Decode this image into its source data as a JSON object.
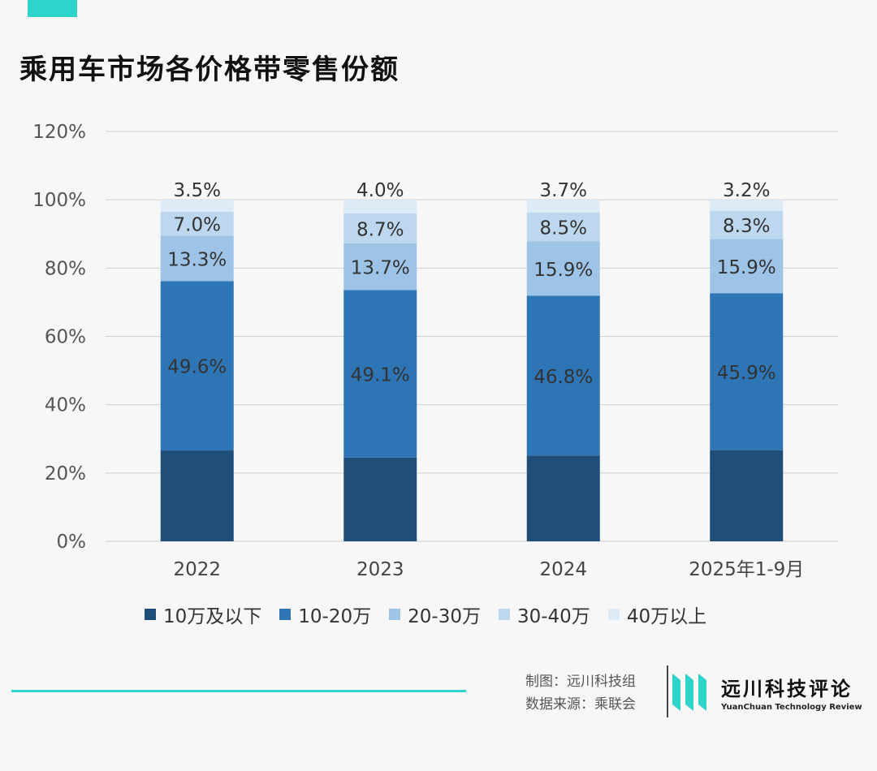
{
  "title": "乘用车市场各价格带零售份额",
  "chart_data": {
    "type": "bar",
    "stacked": true,
    "categories": [
      "2022",
      "2023",
      "2024",
      "2025年1-9月"
    ],
    "series": [
      {
        "name": "10万及以下",
        "color": "#1f4e79",
        "values": [
          26.6,
          24.5,
          25.1,
          26.7
        ]
      },
      {
        "name": "10-20万",
        "color": "#2e75b6",
        "values": [
          49.6,
          49.1,
          46.8,
          45.9
        ]
      },
      {
        "name": "20-30万",
        "color": "#9dc3e6",
        "values": [
          13.3,
          13.7,
          15.9,
          15.9
        ]
      },
      {
        "name": "30-40万",
        "color": "#bdd7ee",
        "values": [
          7.0,
          8.7,
          8.5,
          8.3
        ]
      },
      {
        "name": "40万以上",
        "color": "#ddebf7",
        "values": [
          3.5,
          4.0,
          3.7,
          3.2
        ]
      }
    ],
    "data_labels": [
      {
        "series": "10-20万",
        "labels": [
          "49.6%",
          "49.1%",
          "46.8%",
          "45.9%"
        ]
      },
      {
        "series": "20-30万",
        "labels": [
          "13.3%",
          "13.7%",
          "15.9%",
          "15.9%"
        ]
      },
      {
        "series": "30-40万",
        "labels": [
          "7.0%",
          "8.7%",
          "8.5%",
          "8.3%"
        ]
      },
      {
        "series": "40万以上",
        "labels": [
          "3.5%",
          "4.0%",
          "3.7%",
          "3.2%"
        ]
      }
    ],
    "yticks": [
      "0%",
      "20%",
      "40%",
      "60%",
      "80%",
      "100%",
      "120%"
    ],
    "ylim": [
      0,
      120
    ],
    "grid": true,
    "legend_position": "bottom"
  },
  "credits": {
    "maker": "制图：远川科技组",
    "source": "数据来源：乘联会"
  },
  "logo": {
    "name_cn": "远川科技评论",
    "name_en": "YuanChuan Technology Review"
  },
  "colors": {
    "accent": "#2ed3c9"
  }
}
